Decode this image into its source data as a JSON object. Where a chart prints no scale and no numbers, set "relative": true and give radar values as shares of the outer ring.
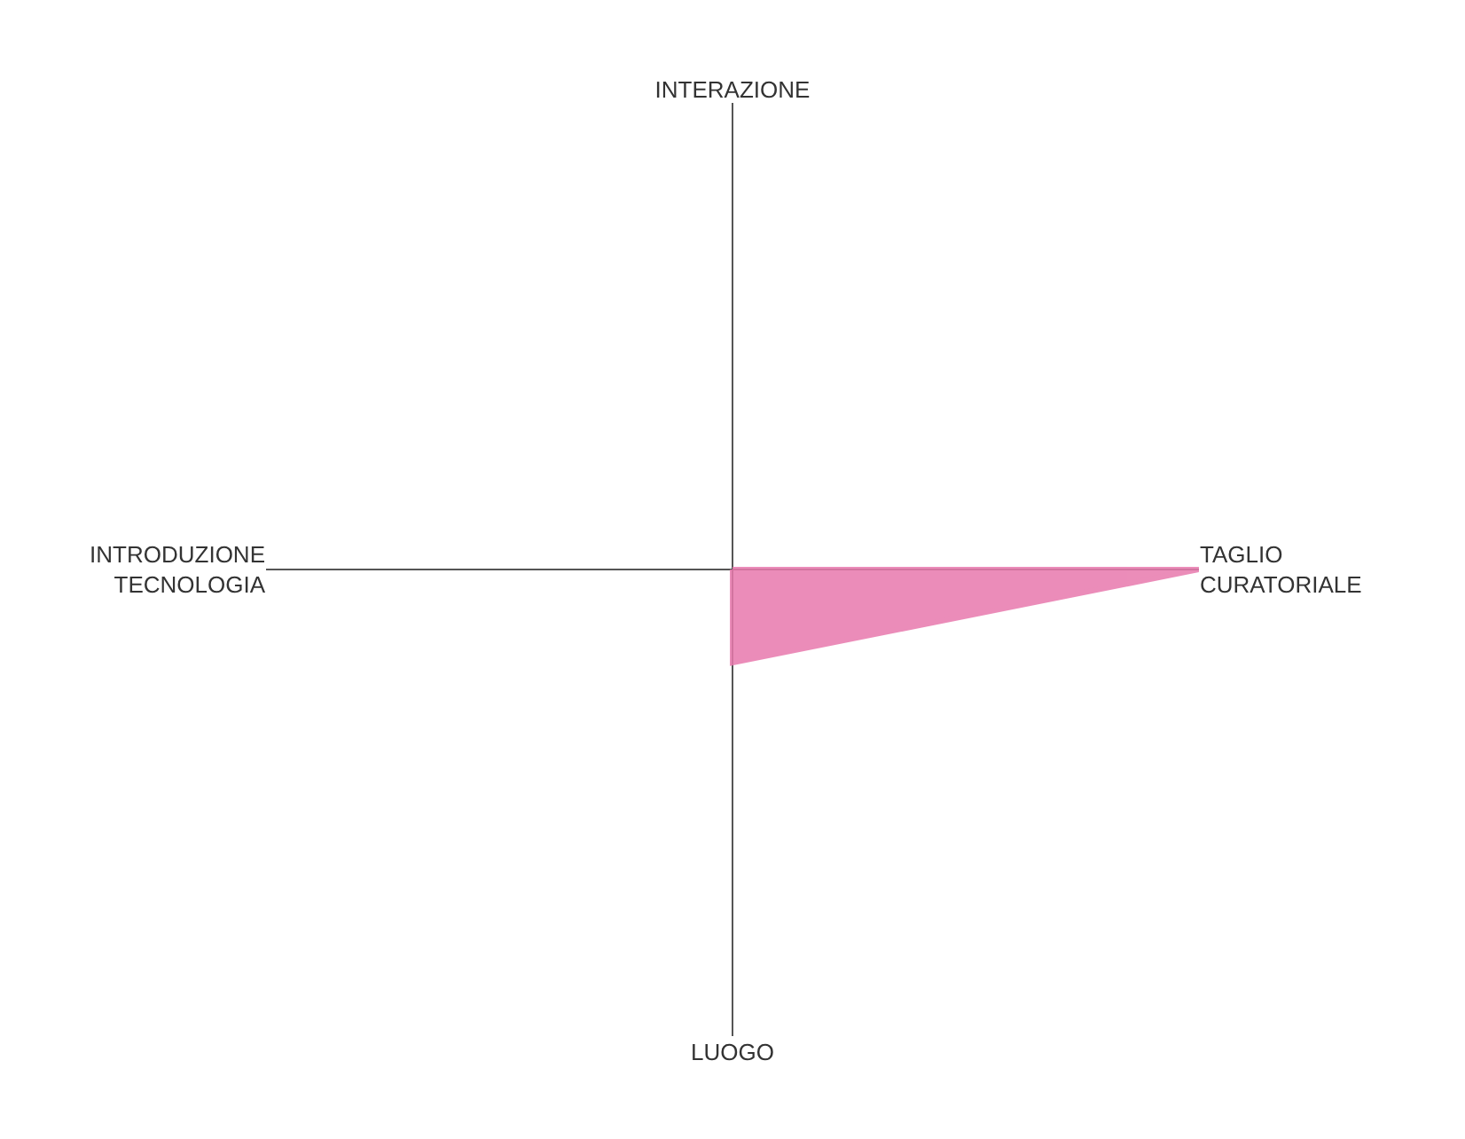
{
  "chart_data": {
    "type": "radar",
    "relative": true,
    "categories": [
      "INTERAZIONE",
      "TAGLIO\nCURATORIALE",
      "LUOGO",
      "INTRODUZIONE\nTECNOLOGIA"
    ],
    "series": [
      {
        "color": "#e879ad",
        "values": [
          0,
          1,
          0.2,
          0
        ]
      }
    ]
  }
}
